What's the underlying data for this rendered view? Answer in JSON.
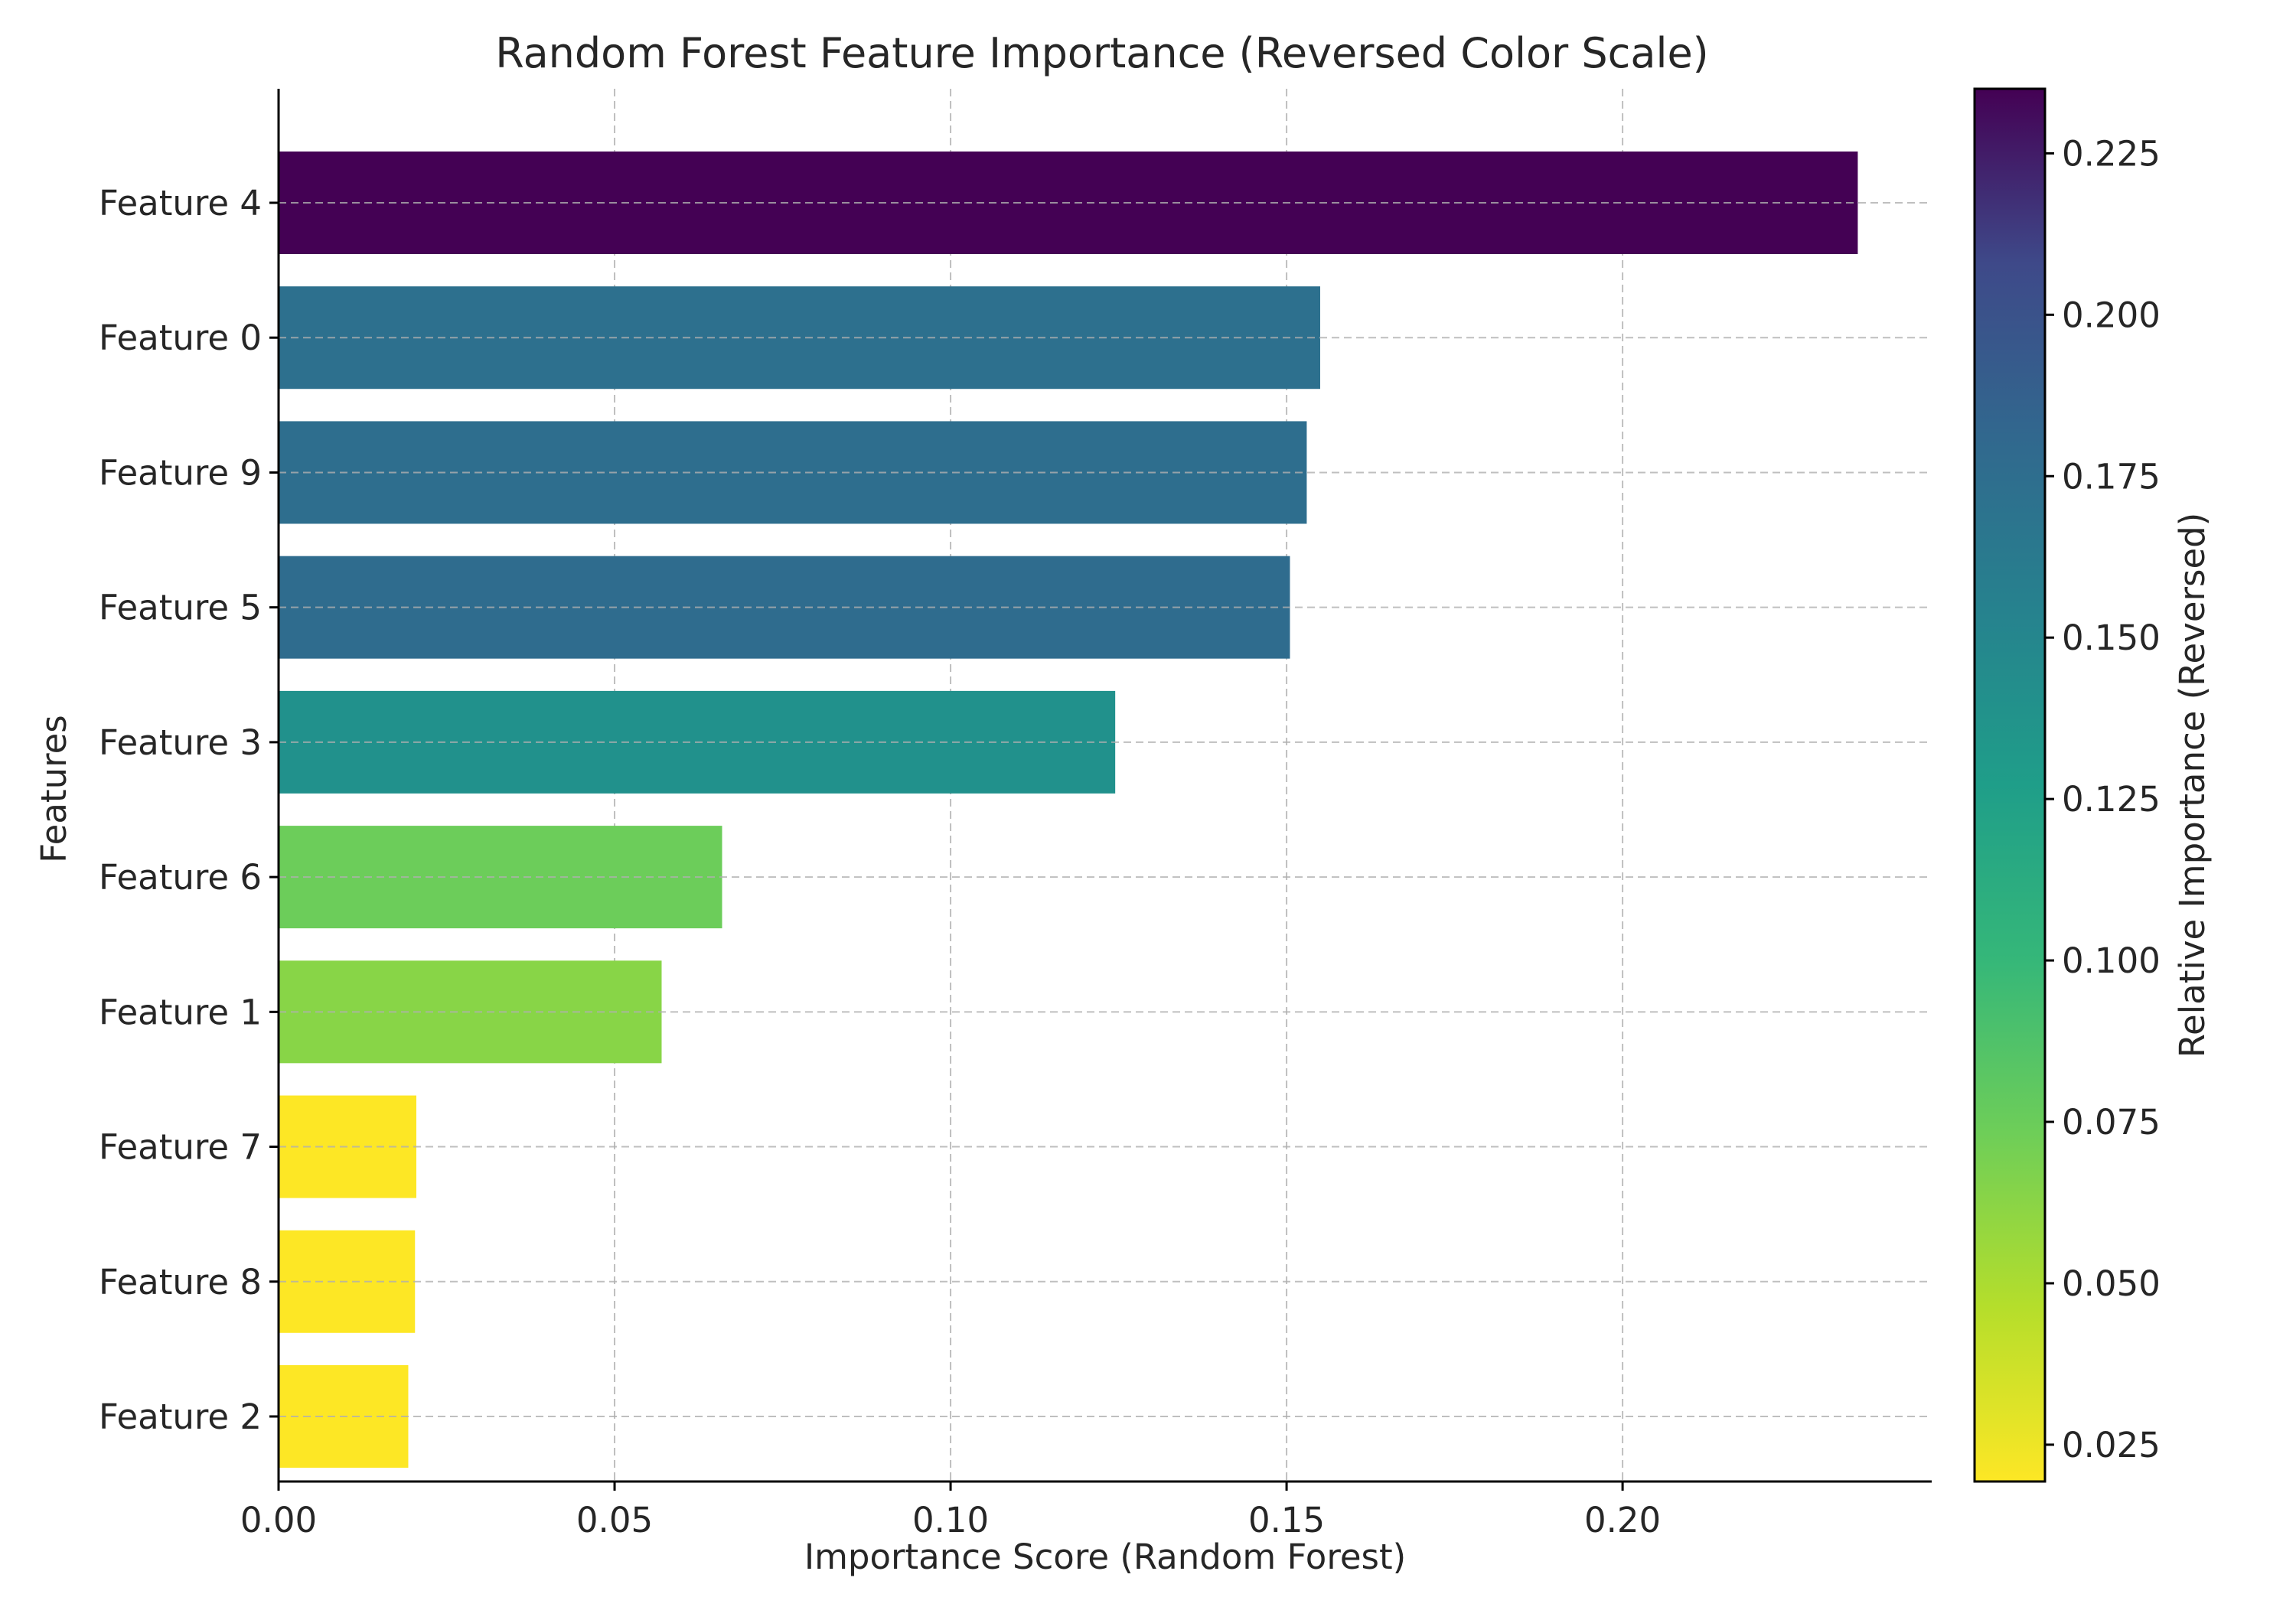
{
  "chart_data": {
    "type": "bar",
    "orientation": "horizontal",
    "title": "Random Forest Feature Importance (Reversed Color Scale)",
    "xlabel": "Importance Score (Random Forest)",
    "ylabel": "Features",
    "xlim": [
      0,
      0.246
    ],
    "xticks": [
      0.0,
      0.05,
      0.1,
      0.15,
      0.2
    ],
    "xtick_labels": [
      "0.00",
      "0.05",
      "0.10",
      "0.15",
      "0.20"
    ],
    "grid": true,
    "categories": [
      "Feature 4",
      "Feature 0",
      "Feature 9",
      "Feature 5",
      "Feature 3",
      "Feature 6",
      "Feature 1",
      "Feature 7",
      "Feature 8",
      "Feature 2"
    ],
    "values": [
      0.235,
      0.155,
      0.153,
      0.1505,
      0.1245,
      0.066,
      0.057,
      0.0205,
      0.0203,
      0.0193
    ],
    "bar_colors": [
      "#440154",
      "#2d708e",
      "#2e6e8e",
      "#2f6c8e",
      "#21918c",
      "#6ccd5a",
      "#88d547",
      "#fde725",
      "#fde725",
      "#fde725"
    ],
    "colorbar": {
      "label": "Relative Importance (Reversed)",
      "range": [
        0.0193,
        0.235
      ],
      "reversed": true,
      "colormap": "viridis_r",
      "ticks": [
        0.025,
        0.05,
        0.075,
        0.1,
        0.125,
        0.15,
        0.175,
        0.2,
        0.225
      ],
      "tick_labels": [
        "0.025",
        "0.050",
        "0.075",
        "0.100",
        "0.125",
        "0.150",
        "0.175",
        "0.200",
        "0.225"
      ]
    }
  }
}
